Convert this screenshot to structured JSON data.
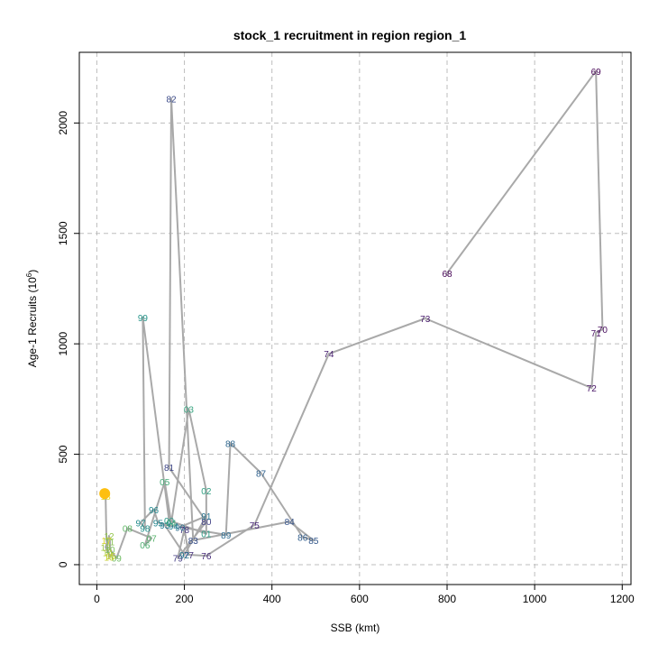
{
  "chart_data": {
    "type": "scatter",
    "title": "stock_1 recruitment in region region_1",
    "xlabel": "SSB (kmt)",
    "ylabel": "Age-1 Recruits (10^6)",
    "ylabel_main": "Age-1 Recruits (10",
    "ylabel_sup": "6",
    "ylabel_close": ")",
    "xlim": [
      -40,
      1220
    ],
    "ylim": [
      -90,
      2320
    ],
    "xticks": [
      0,
      200,
      400,
      600,
      800,
      1000,
      1200
    ],
    "yticks": [
      0,
      500,
      1000,
      1500,
      2000
    ],
    "grid": true,
    "line_color": "#a9a9a9",
    "highlight_color": "#fdbf11",
    "highlight_point": {
      "x": 18,
      "y": 322
    },
    "points": [
      {
        "label": "68",
        "x": 800,
        "y": 1320,
        "color": "#440154"
      },
      {
        "label": "69",
        "x": 1140,
        "y": 2235,
        "color": "#440154"
      },
      {
        "label": "70",
        "x": 1155,
        "y": 1065,
        "color": "#45085b"
      },
      {
        "label": "71",
        "x": 1140,
        "y": 1050,
        "color": "#470e61"
      },
      {
        "label": "72",
        "x": 1130,
        "y": 800,
        "color": "#481467"
      },
      {
        "label": "73",
        "x": 750,
        "y": 1115,
        "color": "#481a6c"
      },
      {
        "label": "74",
        "x": 530,
        "y": 955,
        "color": "#482071"
      },
      {
        "label": "75",
        "x": 360,
        "y": 180,
        "color": "#472576"
      },
      {
        "label": "76",
        "x": 250,
        "y": 40,
        "color": "#462a79"
      },
      {
        "label": "77",
        "x": 210,
        "y": 45,
        "color": "#45307c"
      },
      {
        "label": "78",
        "x": 200,
        "y": 160,
        "color": "#43357f"
      },
      {
        "label": "79",
        "x": 185,
        "y": 30,
        "color": "#413a82"
      },
      {
        "label": "80",
        "x": 250,
        "y": 195,
        "color": "#3f3f84"
      },
      {
        "label": "81",
        "x": 165,
        "y": 440,
        "color": "#3c4486"
      },
      {
        "label": "82",
        "x": 170,
        "y": 2110,
        "color": "#3a4988"
      },
      {
        "label": "83",
        "x": 220,
        "y": 110,
        "color": "#374e89"
      },
      {
        "label": "84",
        "x": 440,
        "y": 195,
        "color": "#35538b"
      },
      {
        "label": "85",
        "x": 495,
        "y": 110,
        "color": "#32578b"
      },
      {
        "label": "86",
        "x": 470,
        "y": 125,
        "color": "#305c8c"
      },
      {
        "label": "87",
        "x": 375,
        "y": 415,
        "color": "#2d608d"
      },
      {
        "label": "88",
        "x": 305,
        "y": 550,
        "color": "#2b658d"
      },
      {
        "label": "89",
        "x": 295,
        "y": 135,
        "color": "#29698e"
      },
      {
        "label": "90",
        "x": 190,
        "y": 170,
        "color": "#276d8e"
      },
      {
        "label": "91",
        "x": 250,
        "y": 220,
        "color": "#25728e"
      },
      {
        "label": "92",
        "x": 200,
        "y": 45,
        "color": "#23768e"
      },
      {
        "label": "93",
        "x": 155,
        "y": 180,
        "color": "#227a8e"
      },
      {
        "label": "94",
        "x": 175,
        "y": 175,
        "color": "#207e8e"
      },
      {
        "label": "95",
        "x": 140,
        "y": 190,
        "color": "#1f838d"
      },
      {
        "label": "96",
        "x": 130,
        "y": 250,
        "color": "#1e878d"
      },
      {
        "label": "97",
        "x": 100,
        "y": 190,
        "color": "#1f8b8b"
      },
      {
        "label": "98",
        "x": 110,
        "y": 165,
        "color": "#1f8f8a"
      },
      {
        "label": "99",
        "x": 105,
        "y": 1120,
        "color": "#229388"
      },
      {
        "label": "00",
        "x": 165,
        "y": 200,
        "color": "#259786"
      },
      {
        "label": "01",
        "x": 250,
        "y": 140,
        "color": "#2a9b84"
      },
      {
        "label": "02",
        "x": 250,
        "y": 335,
        "color": "#2f9f81"
      },
      {
        "label": "03",
        "x": 210,
        "y": 705,
        "color": "#35a37e"
      },
      {
        "label": "04",
        "x": 170,
        "y": 190,
        "color": "#3ca77a"
      },
      {
        "label": "05",
        "x": 155,
        "y": 375,
        "color": "#44ab76"
      },
      {
        "label": "06",
        "x": 110,
        "y": 90,
        "color": "#4daf71"
      },
      {
        "label": "07",
        "x": 125,
        "y": 120,
        "color": "#57b36c"
      },
      {
        "label": "08",
        "x": 70,
        "y": 165,
        "color": "#61b767"
      },
      {
        "label": "09",
        "x": 45,
        "y": 30,
        "color": "#6dbb60"
      },
      {
        "label": "10",
        "x": 30,
        "y": 70,
        "color": "#79be5a"
      },
      {
        "label": "11",
        "x": 30,
        "y": 105,
        "color": "#86c253"
      },
      {
        "label": "12",
        "x": 28,
        "y": 130,
        "color": "#92c54c"
      },
      {
        "label": "13",
        "x": 20,
        "y": 80,
        "color": "#9fc844"
      },
      {
        "label": "14",
        "x": 25,
        "y": 55,
        "color": "#acca3d"
      },
      {
        "label": "15",
        "x": 32,
        "y": 40,
        "color": "#b9cd36"
      },
      {
        "label": "16",
        "x": 28,
        "y": 35,
        "color": "#c7cf2f"
      },
      {
        "label": "17",
        "x": 22,
        "y": 110,
        "color": "#d4d128"
      },
      {
        "label": "18",
        "x": 20,
        "y": 310,
        "color": "#e1d323"
      }
    ]
  }
}
